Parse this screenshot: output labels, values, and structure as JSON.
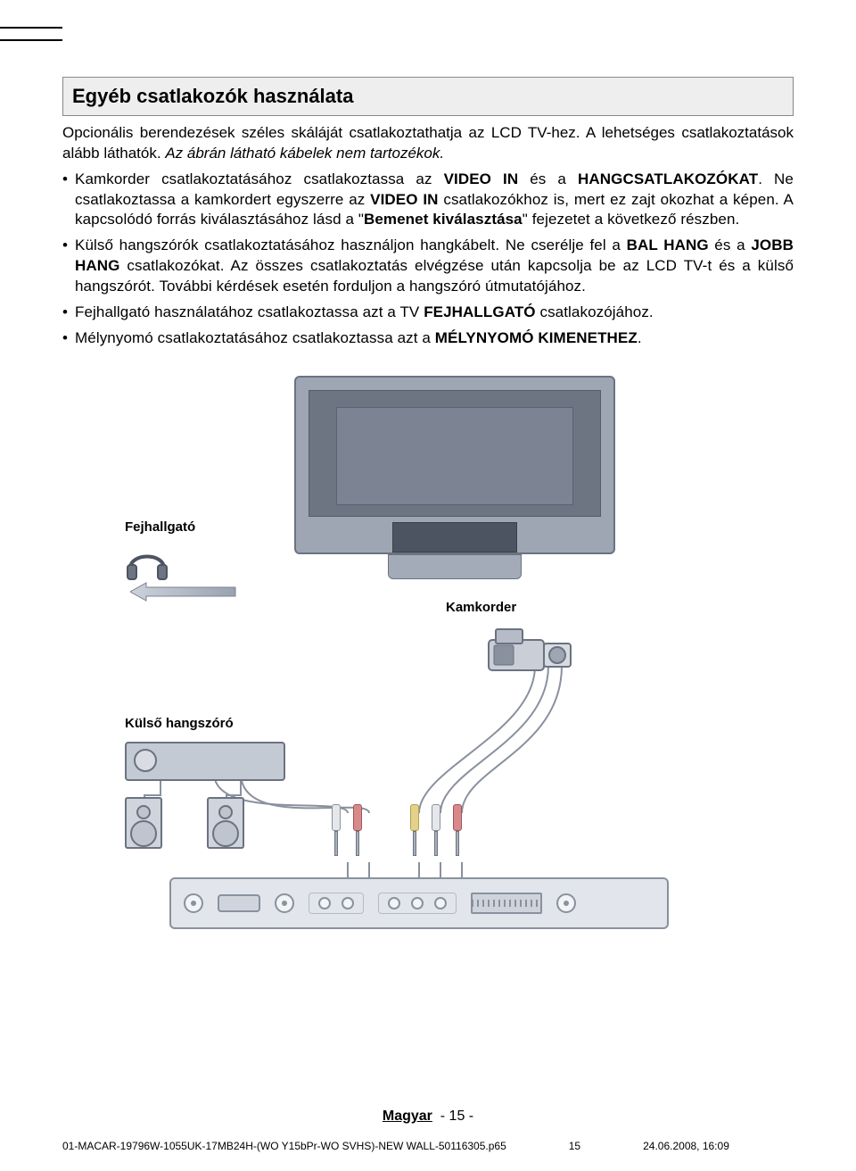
{
  "title": "Egyéb csatlakozók használata",
  "intro_1": "Opcionális berendezések széles skáláját csatlakoztathatja az LCD TV-hez. A lehetséges csatlakoztatások alább láthatók. ",
  "intro_2_italic": "Az ábrán látható kábelek nem tartozékok.",
  "bullets": [
    {
      "frags": [
        {
          "t": "Kamkorder csatlakoztatásához csatlakoztassa az ",
          "b": false
        },
        {
          "t": "VIDEO IN",
          "b": true
        },
        {
          "t": " és a ",
          "b": false
        },
        {
          "t": "HANGCSATLAKOZÓKAT",
          "b": true
        },
        {
          "t": ". Ne csatlakoztassa a kamkordert egyszerre az ",
          "b": false
        },
        {
          "t": "VIDEO IN",
          "b": true
        },
        {
          "t": " csatlakozókhoz is, mert ez zajt okozhat a képen. A kapcsolódó forrás kiválasztásához lásd a \"",
          "b": false
        },
        {
          "t": "Bemenet kiválasztása",
          "b": true
        },
        {
          "t": "\" fejezetet a következő részben.",
          "b": false
        }
      ]
    },
    {
      "frags": [
        {
          "t": "Külső hangszórók csatlakoztatásához használjon hangkábelt. Ne cserélje fel a ",
          "b": false
        },
        {
          "t": "BAL HANG",
          "b": true
        },
        {
          "t": " és a ",
          "b": false
        },
        {
          "t": "JOBB HANG",
          "b": true
        },
        {
          "t": " csatlakozókat. Az összes csatlakoztatás elvégzése után kapcsolja be az LCD TV-t és a külső hangszórót. További kérdések esetén forduljon a hangszóró útmutatójához.",
          "b": false
        }
      ]
    },
    {
      "frags": [
        {
          "t": "Fejhallgató használatához csatlakoztassa azt a TV ",
          "b": false
        },
        {
          "t": "FEJHALLGATÓ",
          "b": true
        },
        {
          "t": " csatlakozójához.",
          "b": false
        }
      ]
    },
    {
      "frags": [
        {
          "t": "Mélynyomó csatlakoztatásához csatlakoztassa azt a ",
          "b": false
        },
        {
          "t": "MÉLYNYOMÓ KIMENETHEZ",
          "b": true
        },
        {
          "t": ".",
          "b": false
        }
      ]
    }
  ],
  "labels": {
    "headphone": "Fejhallgató",
    "camcorder": "Kamkorder",
    "speaker": "Külső hangszóró"
  },
  "footer": {
    "language": "Magyar",
    "page": "- 15 -"
  },
  "footline": {
    "file": "01-MACAR-19796W-1055UK-17MB24H-(WO Y15bPr-WO SVHS)-NEW WALL-50116305.p65",
    "pagenum": "15",
    "datetime": "24.06.2008, 16:09"
  },
  "colors": {
    "title_bg": "#eeeeee",
    "title_border": "#888888",
    "device_fill": "#9ea5b3",
    "device_border": "#6b7280",
    "panel_bg": "#e2e6ec",
    "cable": "#8a919e",
    "plug_white": "#e5e7eb",
    "plug_red": "#d88a8a",
    "plug_yellow": "#e4d28a"
  }
}
